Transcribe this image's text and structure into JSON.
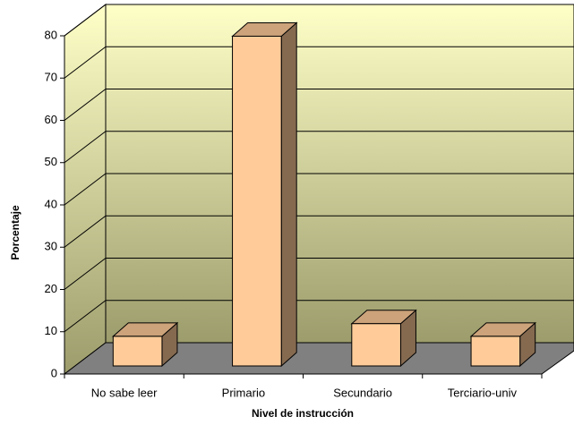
{
  "chart_data": {
    "type": "bar3d",
    "x_label": "Nivel de instrucción",
    "y_label": "Porcentaje",
    "categories": [
      "No sabe leer",
      "Primario",
      "Secundario",
      "Terciario-univ"
    ],
    "values": [
      7,
      78,
      10,
      7
    ],
    "color": "#ffcc99",
    "ylim": [
      0,
      80
    ],
    "yticks": [
      0,
      10,
      20,
      30,
      40,
      50,
      60,
      70,
      80
    ],
    "grid": true
  }
}
